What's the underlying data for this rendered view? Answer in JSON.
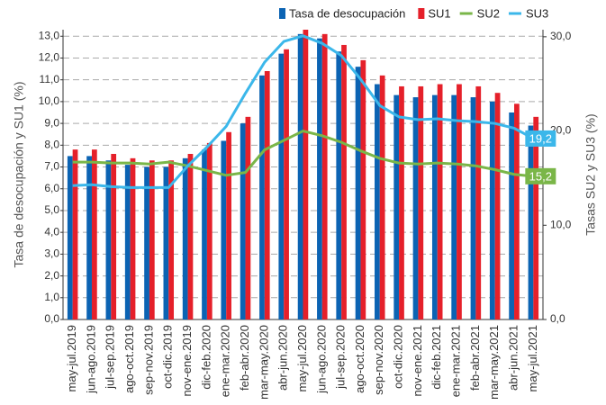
{
  "chart_data": {
    "type": "bar_line",
    "categories": [
      "may-jul.2019",
      "jun-ago.2019",
      "jul-sep.2019",
      "ago-oct.2019",
      "sep-nov.2019",
      "oct-dic.2019",
      "nov-ene.2019",
      "dic-feb.2020",
      "ene-mar.2020",
      "feb-abr.2020",
      "mar-may.2020",
      "abr-jun.2020",
      "may-jul.2020",
      "jun-ago.2020",
      "jul-sep.2020",
      "ago-oct.2020",
      "sep-nov.2020",
      "oct-dic.2020",
      "nov-ene.2021",
      "dic-feb.2021",
      "ene-mar.2021",
      "feb-abr.2021",
      "mar-may.2021",
      "abr-jun.2021",
      "may-jul.2021"
    ],
    "series": [
      {
        "name": "Tasa de desocupación",
        "color": "#0b63b3",
        "kind": "bar",
        "values": [
          7.5,
          7.5,
          7.3,
          7.1,
          7.0,
          7.0,
          7.4,
          7.8,
          8.2,
          9.0,
          11.2,
          12.2,
          13.1,
          12.9,
          12.3,
          11.6,
          10.8,
          10.3,
          10.2,
          10.3,
          10.3,
          10.2,
          10.0,
          9.5,
          8.9
        ]
      },
      {
        "name": "SU1",
        "color": "#e5202a",
        "kind": "bar",
        "values": [
          7.8,
          7.8,
          7.6,
          7.4,
          7.3,
          7.3,
          7.6,
          8.1,
          8.6,
          9.3,
          11.4,
          12.4,
          13.3,
          13.1,
          12.6,
          11.9,
          11.2,
          10.7,
          10.7,
          10.8,
          10.8,
          10.7,
          10.4,
          9.9,
          9.3
        ]
      },
      {
        "name": "SU2",
        "color": "#7ab648",
        "kind": "line",
        "axis": "y2",
        "end_label": "15,2",
        "values": [
          16.7,
          16.7,
          16.6,
          16.6,
          16.5,
          16.7,
          16.3,
          15.8,
          15.3,
          15.6,
          18.0,
          19.0,
          20.0,
          19.5,
          18.8,
          17.9,
          17.1,
          16.6,
          16.5,
          16.6,
          16.5,
          16.3,
          15.9,
          15.4,
          15.2
        ]
      },
      {
        "name": "SU3",
        "color": "#3bb7ea",
        "kind": "line",
        "axis": "y2",
        "end_label": "19,2",
        "values": [
          14.2,
          14.3,
          14.1,
          14.0,
          14.0,
          14.0,
          16.3,
          18.3,
          20.5,
          24.0,
          27.3,
          29.5,
          30.1,
          29.3,
          28.0,
          25.5,
          22.7,
          21.5,
          21.2,
          21.3,
          21.1,
          21.0,
          20.8,
          20.3,
          19.2
        ]
      }
    ],
    "ylabel": "Tasa de desocupación y SU1 (%)",
    "y2label": "Tasas SU2 y SU3 (%)",
    "ylim": [
      0,
      13.3
    ],
    "yticks": [
      {
        "value": 0,
        "label": "0,0"
      },
      {
        "value": 1,
        "label": "1,0"
      },
      {
        "value": 2,
        "label": "2,0"
      },
      {
        "value": 3,
        "label": "3,0"
      },
      {
        "value": 4,
        "label": "4,0"
      },
      {
        "value": 5,
        "label": "5,0"
      },
      {
        "value": 6,
        "label": "6,0"
      },
      {
        "value": 7,
        "label": "7,0"
      },
      {
        "value": 8,
        "label": "8,0"
      },
      {
        "value": 9,
        "label": "9,0"
      },
      {
        "value": 10,
        "label": "10,0"
      },
      {
        "value": 11,
        "label": "11,0"
      },
      {
        "value": 12,
        "label": "12,0"
      },
      {
        "value": 13,
        "label": "13,0"
      }
    ],
    "y2lim": [
      0,
      30.75
    ],
    "y2ticks": [
      {
        "value": 0,
        "label": "0,0"
      },
      {
        "value": 10,
        "label": "10,0"
      },
      {
        "value": 20,
        "label": "20,0"
      },
      {
        "value": 30,
        "label": "30,0"
      }
    ],
    "grid": true,
    "legend": "top"
  }
}
